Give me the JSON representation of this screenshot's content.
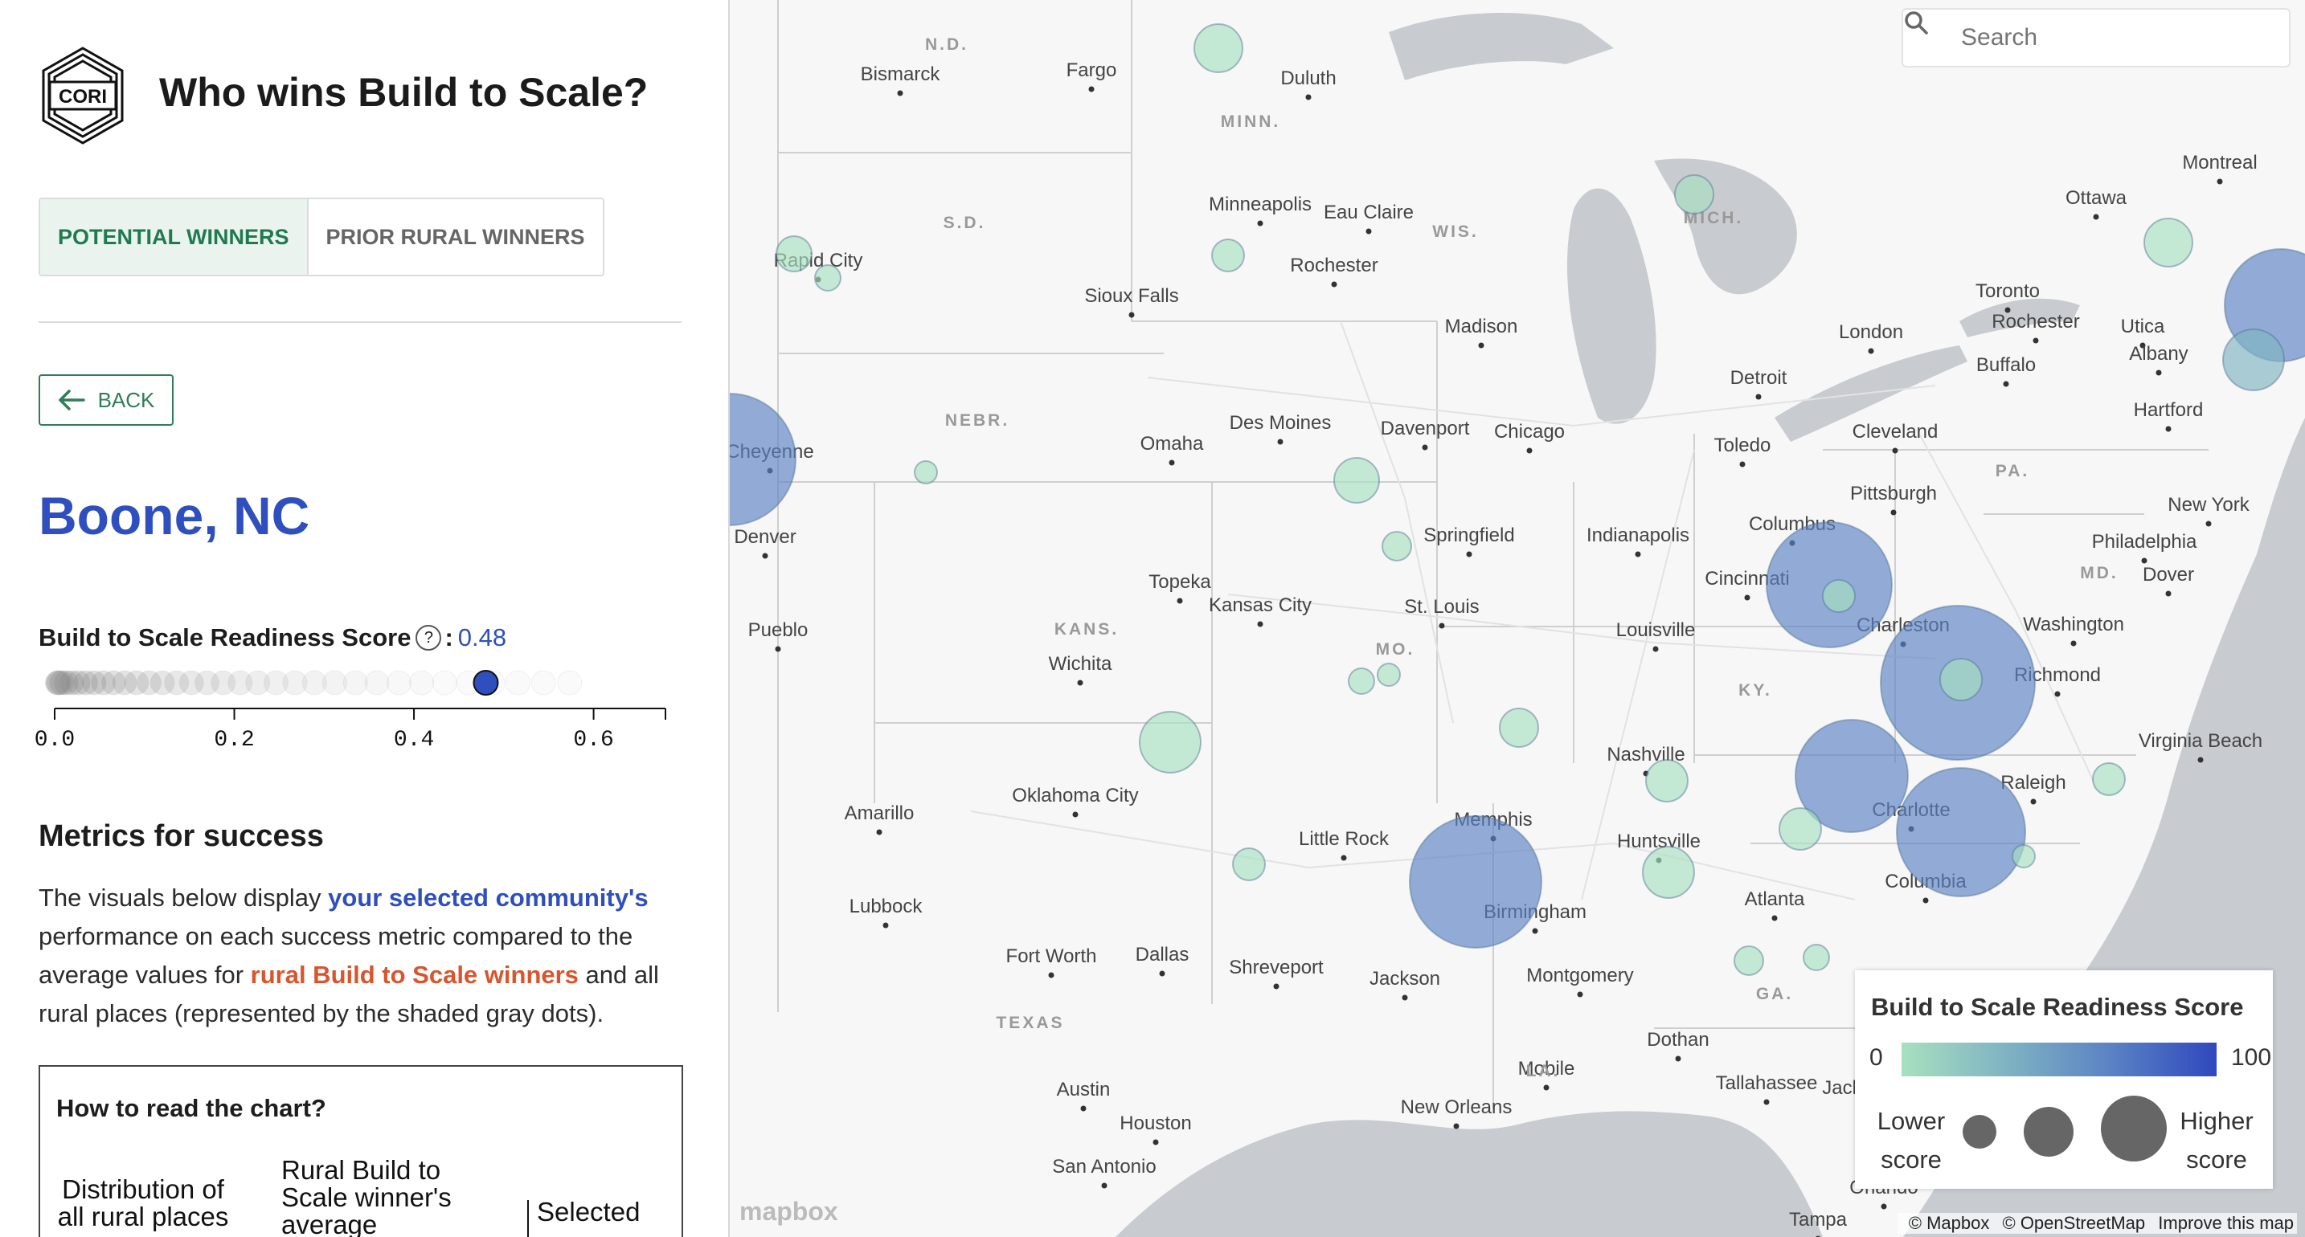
{
  "app": {
    "title": "Who wins Build to Scale?",
    "logo_text": "CORI"
  },
  "tabs": [
    {
      "label": "POTENTIAL WINNERS",
      "active": true
    },
    {
      "label": "PRIOR RURAL WINNERS",
      "active": false
    }
  ],
  "back": {
    "label": "BACK"
  },
  "place": {
    "name": "Boone, NC"
  },
  "score": {
    "label": "Build to Scale Readiness Score",
    "sep": ":",
    "value": "0.48",
    "value_num": 0.48
  },
  "score_axis": {
    "ticks": [
      "0.0",
      "0.2",
      "0.4",
      "0.6"
    ],
    "range": [
      0,
      0.68
    ]
  },
  "metrics": {
    "heading": "Metrics for success",
    "p1": "The visuals below display ",
    "p2": "your selected community's",
    "p3": " performance on each success metric compared to the average values for ",
    "p4": "rural Build to Scale winners",
    "p5": " and all rural places (represented by the shaded gray dots)."
  },
  "howto": {
    "title": "How to read the chart?",
    "label_dist": "Distribution of all rural places",
    "label_avg": "Rural Build to Scale winner's average",
    "label_selected": "Selected place"
  },
  "search": {
    "placeholder": "Search"
  },
  "legend": {
    "title": "Build to Scale Readiness Score",
    "min": "0",
    "max": "100",
    "low": "Lower score",
    "high": "Higher score",
    "colors": [
      "#a7e0c0",
      "#7fb3c2",
      "#5a82c4",
      "#2f48be"
    ]
  },
  "attribution": {
    "mapbox": "© Mapbox",
    "osm": "© OpenStreetMap",
    "improve": "Improve this map",
    "logo": "mapbox"
  },
  "map_labels": {
    "cities": [
      "Bismarck",
      "Fargo",
      "Duluth",
      "Minneapolis",
      "Eau Claire",
      "Rochester",
      "Sioux Falls",
      "Madison",
      "Rapid City",
      "Omaha",
      "Des Moines",
      "Davenport",
      "Chicago",
      "Detroit",
      "Toronto",
      "Rochester",
      "Buffalo",
      "London",
      "Toledo",
      "Cleveland",
      "Pittsburgh",
      "Ottawa",
      "Montreal",
      "Utica",
      "Albany",
      "Hartford",
      "New York",
      "Philadelphia",
      "Dover",
      "Washington",
      "Richmond",
      "Virginia Beach",
      "Raleigh",
      "Charlotte",
      "Columbia",
      "Columbus",
      "Cincinnati",
      "Charleston",
      "Indianapolis",
      "Springfield",
      "St. Louis",
      "Kansas City",
      "Topeka",
      "Wichita",
      "Louisville",
      "Nashville",
      "Huntsville",
      "Memphis",
      "Birmingham",
      "Atlanta",
      "Little Rock",
      "Oklahoma City",
      "Amarillo",
      "Lubbock",
      "Fort Worth",
      "Dallas",
      "Shreveport",
      "Jackson",
      "Montgomery",
      "Dothan",
      "Tallahassee",
      "Jacksonville",
      "Mobile",
      "New Orleans",
      "Austin",
      "Houston",
      "San Antonio",
      "Tampa",
      "Orlando",
      "Pueblo",
      "Denver",
      "Cheyenne"
    ],
    "states": [
      "N.D.",
      "MINN.",
      "S.D.",
      "WIS.",
      "MICH.",
      "NEBR.",
      "KANS.",
      "MO.",
      "KY.",
      "PA.",
      "MD.",
      "TEXAS",
      "LA.",
      "GA."
    ]
  }
}
